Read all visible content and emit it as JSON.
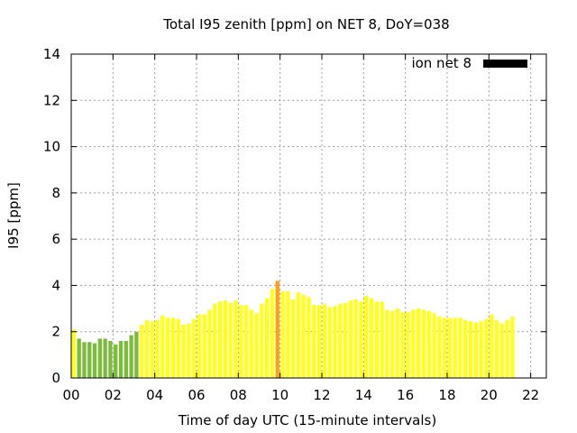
{
  "chart_data": {
    "type": "bar",
    "title": "Total I95 zenith [ppm] on NET 8, DoY=038",
    "xlabel": "Time of day UTC (15-minute intervals)",
    "ylabel": "I95 [ppm]",
    "ylim": [
      0,
      14
    ],
    "xlim": [
      0,
      22.75
    ],
    "yticks": [
      "0",
      "2",
      "4",
      "6",
      "8",
      "10",
      "12",
      "14"
    ],
    "xticks": [
      "00",
      "02",
      "04",
      "06",
      "08",
      "10",
      "12",
      "14",
      "16",
      "18",
      "20",
      "22"
    ],
    "grid": true,
    "legend": {
      "label": "ion net 8",
      "position": "top-right",
      "color": "#000000"
    },
    "colors": {
      "green": "#7cbc3c",
      "yellow": "#ffff1a",
      "orange": "#ff9f1a"
    },
    "series": [
      {
        "start_hour": 0,
        "step_hours": 0.25,
        "values": [
          2.1,
          1.7,
          1.55,
          1.55,
          1.5,
          1.7,
          1.7,
          1.6,
          1.45,
          1.6,
          1.6,
          1.85,
          2.0,
          2.3,
          2.5,
          2.45,
          2.5,
          2.7,
          2.6,
          2.6,
          2.55,
          2.3,
          2.35,
          2.55,
          2.75,
          2.75,
          2.95,
          3.2,
          3.3,
          3.35,
          3.25,
          3.35,
          3.15,
          3.15,
          2.95,
          2.8,
          3.2,
          3.45,
          3.85,
          4.2,
          3.75,
          3.75,
          3.4,
          3.7,
          3.6,
          3.5,
          3.15,
          3.15,
          3.2,
          3.05,
          3.1,
          3.2,
          3.25,
          3.35,
          3.4,
          3.3,
          3.55,
          3.45,
          3.3,
          3.3,
          2.95,
          2.9,
          3.0,
          2.85,
          2.85,
          2.95,
          3.0,
          2.95,
          2.9,
          2.8,
          2.65,
          2.6,
          2.6,
          2.6,
          2.6,
          2.5,
          2.45,
          2.4,
          2.45,
          2.55,
          2.75,
          2.5,
          2.35,
          2.5,
          2.65
        ],
        "colors": [
          "yellow",
          "green",
          "green",
          "green",
          "green",
          "green",
          "green",
          "green",
          "green",
          "green",
          "green",
          "green",
          "green",
          "yellow",
          "yellow",
          "yellow",
          "yellow",
          "yellow",
          "yellow",
          "yellow",
          "yellow",
          "yellow",
          "yellow",
          "yellow",
          "yellow",
          "yellow",
          "yellow",
          "yellow",
          "yellow",
          "yellow",
          "yellow",
          "yellow",
          "yellow",
          "yellow",
          "yellow",
          "yellow",
          "yellow",
          "yellow",
          "yellow",
          "orange",
          "yellow",
          "yellow",
          "yellow",
          "yellow",
          "yellow",
          "yellow",
          "yellow",
          "yellow",
          "yellow",
          "yellow",
          "yellow",
          "yellow",
          "yellow",
          "yellow",
          "yellow",
          "yellow",
          "yellow",
          "yellow",
          "yellow",
          "yellow",
          "yellow",
          "yellow",
          "yellow",
          "yellow",
          "yellow",
          "yellow",
          "yellow",
          "yellow",
          "yellow",
          "yellow",
          "yellow",
          "yellow",
          "yellow",
          "yellow",
          "yellow",
          "yellow",
          "yellow",
          "yellow",
          "yellow",
          "yellow",
          "yellow",
          "yellow",
          "yellow",
          "yellow",
          "yellow"
        ]
      }
    ]
  }
}
